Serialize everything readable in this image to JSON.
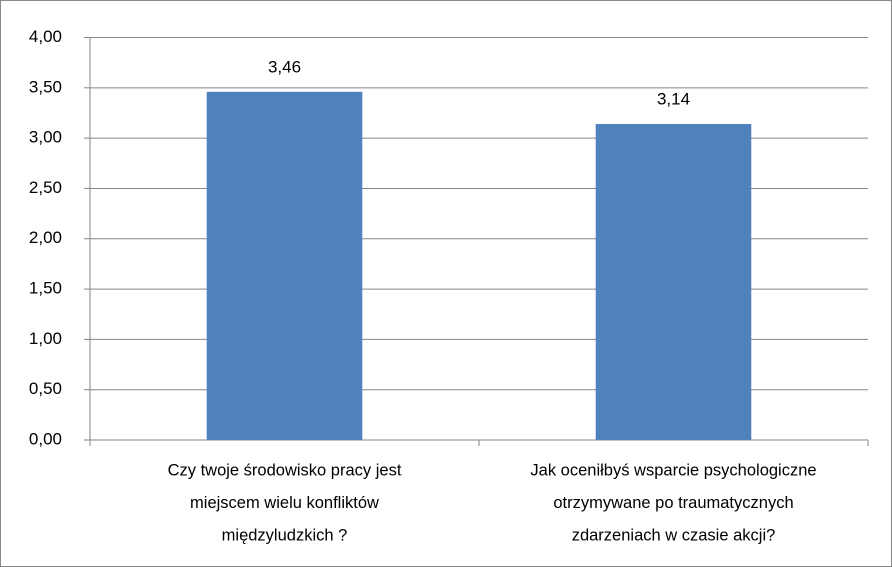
{
  "chart_data": {
    "type": "bar",
    "categories": [
      [
        "Czy twoje środowisko pracy jest",
        "miejscem wielu konfliktów",
        "międzyludzkich ?"
      ],
      [
        "Jak oceniłbyś wsparcie psychologiczne",
        "otrzymywane po traumatycznych",
        "zdarzeniach w czasie akcji?"
      ]
    ],
    "values": [
      3.46,
      3.14
    ],
    "value_labels": [
      "3,46",
      "3,14"
    ],
    "color": "#4f81bd",
    "ylim": [
      0,
      4
    ],
    "yticks": [
      {
        "value": 0,
        "label": "0,00"
      },
      {
        "value": 0.5,
        "label": "0,50"
      },
      {
        "value": 1,
        "label": "1,00"
      },
      {
        "value": 1.5,
        "label": "1,50"
      },
      {
        "value": 2,
        "label": "2,00"
      },
      {
        "value": 2.5,
        "label": "2,50"
      },
      {
        "value": 3,
        "label": "3,00"
      },
      {
        "value": 3.5,
        "label": "3,50"
      },
      {
        "value": 4,
        "label": "4,00"
      }
    ],
    "grid": true
  }
}
